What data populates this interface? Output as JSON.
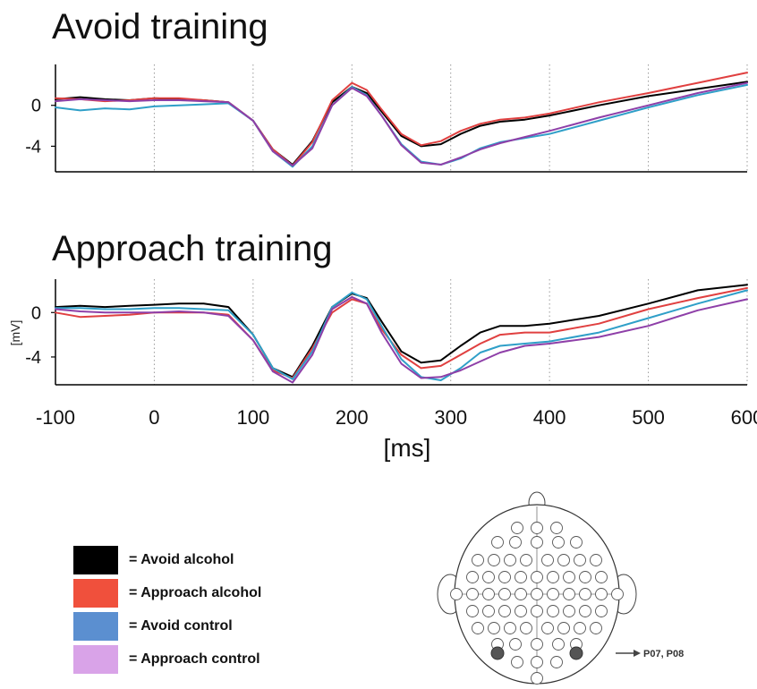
{
  "chart_data": {
    "type": "line",
    "xlabel": "[ms]",
    "ylabel": "[mV]",
    "xlim": [
      -100,
      600
    ],
    "xticks": [
      "-100",
      "0",
      "100",
      "200",
      "300",
      "400",
      "500",
      "600"
    ],
    "yticks": [
      "0",
      "-4"
    ],
    "grid": "vertical dotted lines at x ticks",
    "legend_position": "bottom-left",
    "panels": [
      {
        "title": "Avoid training",
        "ylim": [
          -6.5,
          4
        ],
        "series": [
          {
            "name": "Avoid alcohol",
            "color": "#000000",
            "x": [
              -100,
              -75,
              -50,
              -25,
              0,
              25,
              50,
              75,
              100,
              120,
              140,
              160,
              180,
              200,
              215,
              230,
              250,
              270,
              290,
              310,
              330,
              350,
              375,
              400,
              450,
              500,
              550,
              600
            ],
            "y": [
              0.6,
              0.8,
              0.6,
              0.5,
              0.7,
              0.6,
              0.5,
              0.3,
              -1.5,
              -4.3,
              -5.8,
              -3.5,
              0.3,
              1.8,
              1.2,
              -0.6,
              -3.0,
              -4.0,
              -3.8,
              -2.8,
              -2.0,
              -1.6,
              -1.4,
              -1.0,
              0.0,
              0.9,
              1.6,
              2.3
            ]
          },
          {
            "name": "Approach alcohol",
            "color": "#e04040",
            "x": [
              -100,
              -75,
              -50,
              -25,
              0,
              25,
              50,
              75,
              100,
              120,
              140,
              160,
              180,
              200,
              215,
              230,
              250,
              270,
              290,
              310,
              330,
              350,
              375,
              400,
              450,
              500,
              550,
              600
            ],
            "y": [
              0.7,
              0.6,
              0.4,
              0.5,
              0.7,
              0.7,
              0.5,
              0.3,
              -1.5,
              -4.3,
              -5.9,
              -3.6,
              0.5,
              2.2,
              1.5,
              -0.4,
              -2.8,
              -3.9,
              -3.5,
              -2.5,
              -1.8,
              -1.4,
              -1.2,
              -0.8,
              0.3,
              1.2,
              2.2,
              3.2
            ]
          },
          {
            "name": "Avoid control",
            "color": "#2f9fc8",
            "x": [
              -100,
              -75,
              -50,
              -25,
              0,
              25,
              50,
              75,
              100,
              120,
              140,
              160,
              180,
              200,
              215,
              230,
              250,
              270,
              290,
              310,
              330,
              350,
              375,
              400,
              450,
              500,
              550,
              600
            ],
            "y": [
              -0.2,
              -0.5,
              -0.3,
              -0.4,
              -0.1,
              0.0,
              0.1,
              0.2,
              -1.5,
              -4.5,
              -6.0,
              -4.0,
              0.0,
              1.8,
              1.0,
              -1.0,
              -3.8,
              -5.5,
              -5.8,
              -5.2,
              -4.2,
              -3.6,
              -3.2,
              -2.8,
              -1.5,
              -0.2,
              1.0,
              2.0
            ]
          },
          {
            "name": "Approach control",
            "color": "#8e3fa8",
            "x": [
              -100,
              -75,
              -50,
              -25,
              0,
              25,
              50,
              75,
              100,
              120,
              140,
              160,
              180,
              200,
              215,
              230,
              250,
              270,
              290,
              310,
              330,
              350,
              375,
              400,
              450,
              500,
              550,
              600
            ],
            "y": [
              0.4,
              0.6,
              0.5,
              0.4,
              0.5,
              0.5,
              0.4,
              0.3,
              -1.5,
              -4.5,
              -5.9,
              -4.2,
              0.0,
              1.7,
              0.9,
              -1.0,
              -3.9,
              -5.6,
              -5.8,
              -5.1,
              -4.3,
              -3.7,
              -3.1,
              -2.5,
              -1.2,
              0.0,
              1.2,
              2.2
            ]
          }
        ]
      },
      {
        "title": "Approach training",
        "ylim": [
          -6.5,
          3
        ],
        "series": [
          {
            "name": "Avoid alcohol",
            "color": "#000000",
            "x": [
              -100,
              -75,
              -50,
              -25,
              0,
              25,
              50,
              75,
              100,
              120,
              140,
              160,
              180,
              200,
              215,
              230,
              250,
              270,
              290,
              310,
              330,
              350,
              375,
              400,
              450,
              500,
              550,
              600
            ],
            "y": [
              0.5,
              0.6,
              0.5,
              0.6,
              0.7,
              0.8,
              0.8,
              0.5,
              -2.0,
              -5.0,
              -5.8,
              -3.0,
              0.5,
              1.7,
              1.3,
              -0.8,
              -3.5,
              -4.5,
              -4.3,
              -3.0,
              -1.8,
              -1.2,
              -1.2,
              -1.0,
              -0.3,
              0.8,
              2.0,
              2.5
            ]
          },
          {
            "name": "Approach alcohol",
            "color": "#e04040",
            "x": [
              -100,
              -75,
              -50,
              -25,
              0,
              25,
              50,
              75,
              100,
              120,
              140,
              160,
              180,
              200,
              215,
              230,
              250,
              270,
              290,
              310,
              330,
              350,
              375,
              400,
              450,
              500,
              550,
              600
            ],
            "y": [
              0.0,
              -0.4,
              -0.3,
              -0.2,
              0.0,
              0.0,
              0.0,
              -0.2,
              -2.5,
              -5.2,
              -5.9,
              -3.2,
              0.0,
              1.2,
              0.8,
              -1.5,
              -3.8,
              -5.0,
              -4.8,
              -3.8,
              -2.8,
              -2.0,
              -1.8,
              -1.8,
              -1.0,
              0.3,
              1.3,
              2.2
            ]
          },
          {
            "name": "Avoid control",
            "color": "#2f9fc8",
            "x": [
              -100,
              -75,
              -50,
              -25,
              0,
              25,
              50,
              75,
              100,
              120,
              140,
              160,
              180,
              200,
              215,
              230,
              250,
              270,
              290,
              310,
              330,
              350,
              375,
              400,
              450,
              500,
              550,
              600
            ],
            "y": [
              0.4,
              0.4,
              0.3,
              0.3,
              0.4,
              0.4,
              0.3,
              0.2,
              -2.0,
              -5.0,
              -6.0,
              -3.5,
              0.5,
              1.8,
              1.2,
              -1.2,
              -4.2,
              -5.8,
              -6.1,
              -5.0,
              -3.6,
              -3.0,
              -2.8,
              -2.6,
              -1.8,
              -0.5,
              0.8,
              2.0
            ]
          },
          {
            "name": "Approach control",
            "color": "#8e3fa8",
            "x": [
              -100,
              -75,
              -50,
              -25,
              0,
              25,
              50,
              75,
              100,
              120,
              140,
              160,
              180,
              200,
              215,
              230,
              250,
              270,
              290,
              310,
              330,
              350,
              375,
              400,
              450,
              500,
              550,
              600
            ],
            "y": [
              0.3,
              0.1,
              0.0,
              0.0,
              0.0,
              0.1,
              0.0,
              -0.3,
              -2.5,
              -5.3,
              -6.3,
              -3.8,
              0.3,
              1.4,
              0.8,
              -1.8,
              -4.6,
              -5.9,
              -5.8,
              -5.2,
              -4.4,
              -3.6,
              -3.0,
              -2.8,
              -2.2,
              -1.2,
              0.2,
              1.2
            ]
          }
        ]
      }
    ]
  },
  "legend": {
    "items": [
      {
        "label": "= Avoid alcohol",
        "color": "#000000"
      },
      {
        "label": "= Approach alcohol",
        "color": "#f0503c"
      },
      {
        "label": "= Avoid control",
        "color": "#5b8fd0"
      },
      {
        "label": "= Approach control",
        "color": "#d9a3e8"
      }
    ]
  },
  "electrode_map": {
    "arrow_label": "P07, P08"
  }
}
